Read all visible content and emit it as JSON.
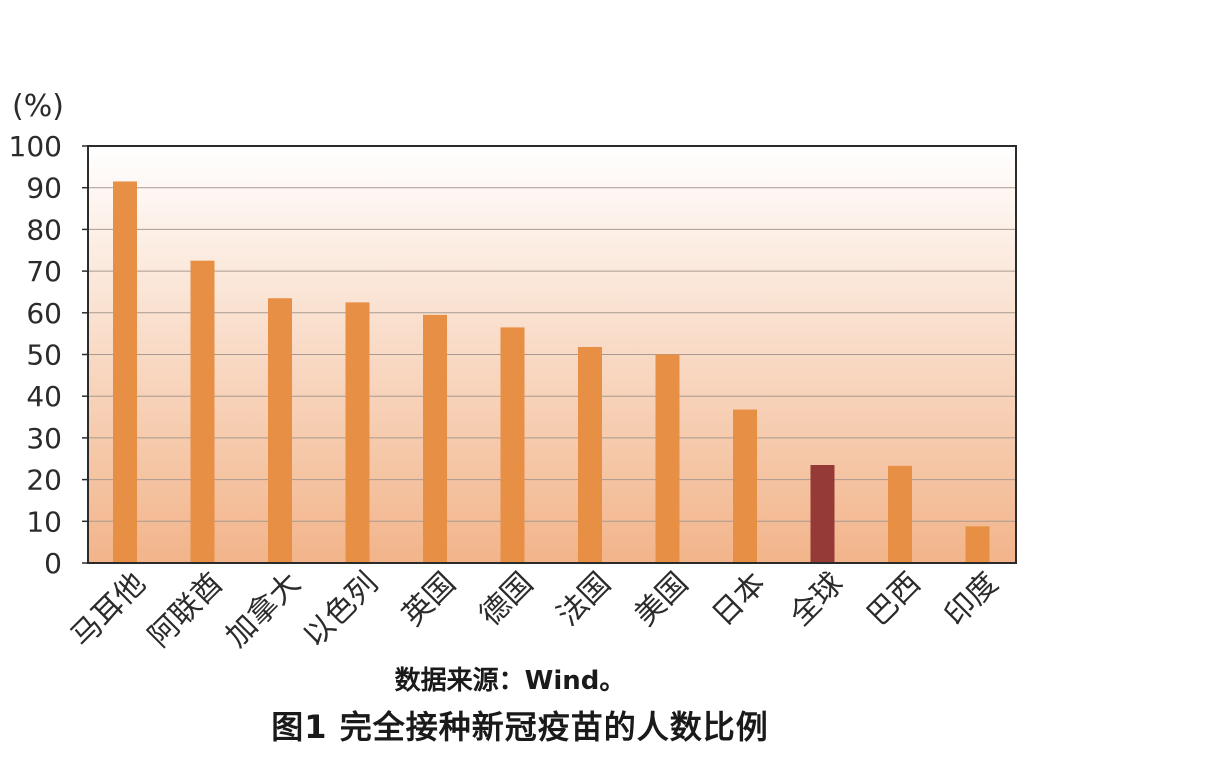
{
  "chart_data": {
    "type": "bar",
    "unit_label": "(%)",
    "categories": [
      "马耳他",
      "阿联酋",
      "加拿大",
      "以色列",
      "英国",
      "德国",
      "法国",
      "美国",
      "日本",
      "全球",
      "巴西",
      "印度"
    ],
    "values": [
      91.5,
      72.5,
      63.5,
      62.5,
      59.5,
      56.5,
      51.8,
      50.0,
      36.8,
      23.5,
      23.3,
      8.8
    ],
    "highlight_category": "全球",
    "bar_color": "#E88F46",
    "highlight_color": "#963A38",
    "ylim": [
      0,
      100
    ],
    "yticks": [
      "0",
      "10",
      "20",
      "30",
      "40",
      "50",
      "60",
      "70",
      "80",
      "90",
      "100"
    ],
    "grid": true,
    "legend": "none",
    "background_gradient": [
      "#FFFFFF",
      "#F2B48A"
    ]
  },
  "source_note": "数据来源：Wind。",
  "caption": "图1  完全接种新冠疫苗的人数比例"
}
